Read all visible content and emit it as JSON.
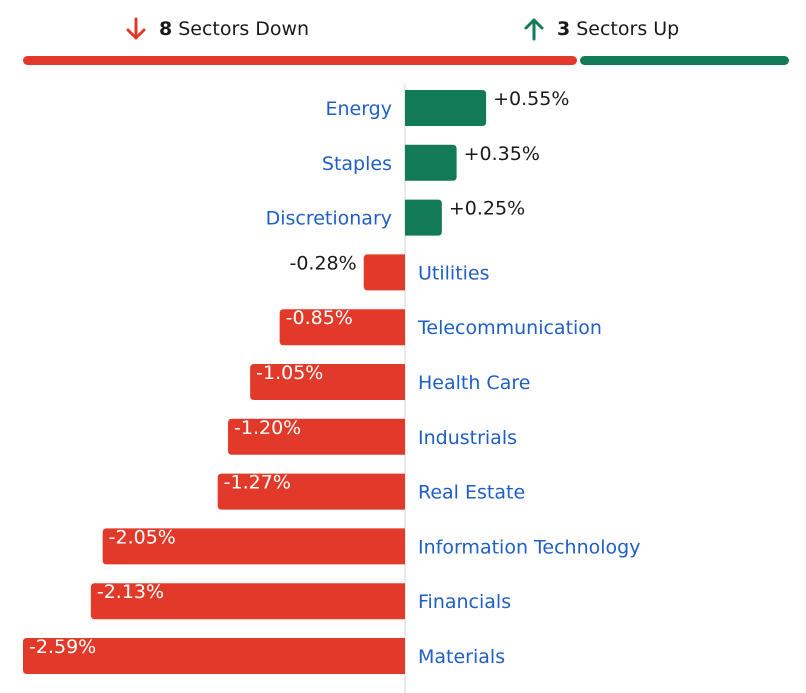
{
  "summary": {
    "down_count": "8",
    "down_label": "Sectors Down",
    "up_count": "3",
    "up_label": "Sectors Up"
  },
  "colors": {
    "up": "#137a58",
    "down": "#e23a2a",
    "label": "#1f5fc4",
    "axis": "#d4d4d4",
    "text": "#1a1a1a"
  },
  "chart_data": {
    "type": "bar",
    "orientation": "horizontal",
    "categories": [
      "Energy",
      "Staples",
      "Discretionary",
      "Utilities",
      "Telecommunication",
      "Health Care",
      "Industrials",
      "Real Estate",
      "Information Technology",
      "Financials",
      "Materials"
    ],
    "values": [
      0.55,
      0.35,
      0.25,
      -0.28,
      -0.85,
      -1.05,
      -1.2,
      -1.27,
      -2.05,
      -2.13,
      -2.59
    ],
    "value_labels": [
      "+0.55%",
      "+0.35%",
      "+0.25%",
      "-0.28%",
      "-0.85%",
      "-1.05%",
      "-1.20%",
      "-1.27%",
      "-2.05%",
      "-2.13%",
      "-2.59%"
    ],
    "xlim": [
      -2.59,
      2.59
    ],
    "grid": false
  }
}
